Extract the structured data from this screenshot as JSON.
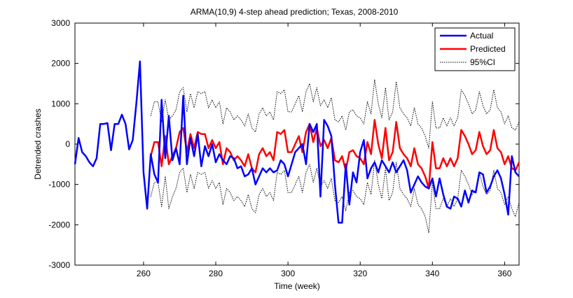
{
  "chart_data": {
    "type": "line",
    "title": "ARMA(10,9) 4-step ahead prediction; Texas, 2008-2010",
    "xlabel": "Time (week)",
    "ylabel": "Detrended crashes",
    "xlim": [
      241,
      364
    ],
    "ylim": [
      -3000,
      3000
    ],
    "xticks": [
      260,
      280,
      300,
      320,
      340,
      360
    ],
    "yticks": [
      -3000,
      -2000,
      -1000,
      0,
      1000,
      2000,
      3000
    ],
    "grid": false,
    "legend_position": "top-right",
    "series": [
      {
        "name": "Actual",
        "color": "#0000ff",
        "style": "solid",
        "x": [
          241,
          242,
          243,
          244,
          245,
          246,
          247,
          248,
          249,
          250,
          251,
          252,
          253,
          254,
          255,
          256,
          257,
          258,
          259,
          260,
          261,
          262,
          263,
          264,
          265,
          266,
          267,
          268,
          269,
          270,
          271,
          272,
          273,
          274,
          275,
          276,
          277,
          278,
          279,
          280,
          281,
          282,
          283,
          284,
          285,
          286,
          287,
          288,
          289,
          290,
          291,
          292,
          293,
          294,
          295,
          296,
          297,
          298,
          299,
          300,
          301,
          302,
          303,
          304,
          305,
          306,
          307,
          308,
          309,
          310,
          311,
          312,
          313,
          314,
          315,
          316,
          317,
          318,
          319,
          320,
          321,
          322,
          323,
          324,
          325,
          326,
          327,
          328,
          329,
          330,
          331,
          332,
          333,
          334,
          335,
          336,
          337,
          338,
          339,
          340,
          341,
          342,
          343,
          344,
          345,
          346,
          347,
          348,
          349,
          350,
          351,
          352,
          353,
          354,
          355,
          356,
          357,
          358,
          359,
          360,
          361,
          362,
          363,
          364
        ],
        "y": [
          -500,
          150,
          -200,
          -300,
          -450,
          -550,
          -350,
          500,
          500,
          520,
          -150,
          500,
          500,
          730,
          500,
          -130,
          100,
          1000,
          2050,
          -700,
          -1600,
          -250,
          -750,
          -950,
          1100,
          -350,
          700,
          -400,
          -100,
          -500,
          1200,
          -500,
          150,
          -300,
          250,
          -550,
          -50,
          -300,
          0,
          -450,
          -250,
          -400,
          -500,
          -300,
          -350,
          -600,
          -550,
          -800,
          -750,
          -600,
          -1000,
          -800,
          -600,
          -700,
          -600,
          -700,
          -650,
          -400,
          -500,
          -800,
          -500,
          -200,
          -100,
          0,
          -500,
          500,
          300,
          500,
          -1300,
          600,
          450,
          200,
          -1000,
          -1950,
          -1950,
          -500,
          -1500,
          -700,
          -950,
          -200,
          100,
          -850,
          -600,
          -450,
          -700,
          -400,
          -550,
          -700,
          -450,
          -700,
          -550,
          -400,
          -650,
          -1200,
          -1000,
          -800,
          -950,
          -1050,
          -1100,
          -850,
          -1300,
          -850,
          -1250,
          -1550,
          -1600,
          -1300,
          -1350,
          -1550,
          -1150,
          -1450,
          -1150,
          -1200,
          -700,
          -750,
          -1200,
          -1050,
          -800,
          -650,
          -850,
          -1250,
          -1750,
          -300,
          -700,
          -800
        ]
      },
      {
        "name": "Predicted",
        "color": "#ff0000",
        "style": "solid",
        "x": [
          262,
          263,
          264,
          265,
          266,
          267,
          268,
          269,
          270,
          271,
          272,
          273,
          274,
          275,
          276,
          277,
          278,
          279,
          280,
          281,
          282,
          283,
          284,
          285,
          286,
          287,
          288,
          289,
          290,
          291,
          292,
          293,
          294,
          295,
          296,
          297,
          298,
          299,
          300,
          301,
          302,
          303,
          304,
          305,
          306,
          307,
          308,
          309,
          310,
          311,
          312,
          313,
          314,
          315,
          316,
          317,
          318,
          319,
          320,
          321,
          322,
          323,
          324,
          325,
          326,
          327,
          328,
          329,
          330,
          331,
          332,
          333,
          334,
          335,
          336,
          337,
          338,
          339,
          340,
          341,
          342,
          343,
          344,
          345,
          346,
          347,
          348,
          349,
          350,
          351,
          352,
          353,
          354,
          355,
          356,
          357,
          358,
          359,
          360,
          361,
          362,
          363,
          364
        ],
        "y": [
          -300,
          50,
          50,
          -550,
          200,
          -500,
          -300,
          -100,
          300,
          400,
          -200,
          250,
          -100,
          300,
          250,
          250,
          -100,
          100,
          -100,
          50,
          -500,
          -100,
          -200,
          -400,
          -300,
          -400,
          -550,
          -250,
          -600,
          -700,
          -250,
          -100,
          -300,
          -200,
          -400,
          300,
          250,
          350,
          -200,
          -200,
          0,
          200,
          -200,
          300,
          500,
          50,
          400,
          -50,
          100,
          -100,
          150,
          -400,
          -450,
          -300,
          -650,
          -200,
          -150,
          -300,
          -350,
          -500,
          50,
          -250,
          600,
          0,
          -350,
          400,
          -400,
          -200,
          550,
          -100,
          -250,
          -350,
          -550,
          -100,
          -500,
          -600,
          -800,
          -1100,
          50,
          -600,
          -600,
          -350,
          -550,
          -350,
          -550,
          -350,
          350,
          200,
          0,
          -250,
          -150,
          300,
          -50,
          -250,
          -150,
          350,
          -100,
          -200,
          -500,
          -300,
          -600,
          -650,
          -450
        ]
      },
      {
        "name": "95%CI",
        "color": "#000000",
        "style": "dotted",
        "x": [
          262,
          263,
          264,
          265,
          266,
          267,
          268,
          269,
          270,
          271,
          272,
          273,
          274,
          275,
          276,
          277,
          278,
          279,
          280,
          281,
          282,
          283,
          284,
          285,
          286,
          287,
          288,
          289,
          290,
          291,
          292,
          293,
          294,
          295,
          296,
          297,
          298,
          299,
          300,
          301,
          302,
          303,
          304,
          305,
          306,
          307,
          308,
          309,
          310,
          311,
          312,
          313,
          314,
          315,
          316,
          317,
          318,
          319,
          320,
          321,
          322,
          323,
          324,
          325,
          326,
          327,
          328,
          329,
          330,
          331,
          332,
          333,
          334,
          335,
          336,
          337,
          338,
          339,
          340,
          341,
          342,
          343,
          344,
          345,
          346,
          347,
          348,
          349,
          350,
          351,
          352,
          353,
          354,
          355,
          356,
          357,
          358,
          359,
          360,
          361,
          362,
          363,
          364
        ],
        "y": [
          700,
          1050,
          1050,
          550,
          1100,
          600,
          700,
          850,
          1300,
          1400,
          800,
          1250,
          900,
          1300,
          1250,
          1300,
          900,
          1100,
          900,
          1050,
          500,
          900,
          800,
          600,
          700,
          600,
          450,
          750,
          400,
          300,
          750,
          900,
          700,
          800,
          600,
          1300,
          1250,
          1350,
          800,
          800,
          1000,
          1200,
          800,
          1300,
          1500,
          1050,
          1400,
          950,
          1100,
          900,
          1150,
          600,
          550,
          700,
          350,
          800,
          850,
          700,
          650,
          500,
          1050,
          750,
          1600,
          1000,
          650,
          1400,
          600,
          800,
          1550,
          900,
          750,
          650,
          450,
          900,
          500,
          400,
          200,
          -100,
          1050,
          400,
          400,
          650,
          450,
          650,
          450,
          650,
          1350,
          1200,
          1000,
          750,
          850,
          1300,
          950,
          750,
          850,
          1350,
          900,
          800,
          500,
          700,
          400,
          350,
          550
        ]
      },
      {
        "name": "",
        "color": "#000000",
        "style": "dotted",
        "x": [
          262,
          263,
          264,
          265,
          266,
          267,
          268,
          269,
          270,
          271,
          272,
          273,
          274,
          275,
          276,
          277,
          278,
          279,
          280,
          281,
          282,
          283,
          284,
          285,
          286,
          287,
          288,
          289,
          290,
          291,
          292,
          293,
          294,
          295,
          296,
          297,
          298,
          299,
          300,
          301,
          302,
          303,
          304,
          305,
          306,
          307,
          308,
          309,
          310,
          311,
          312,
          313,
          314,
          315,
          316,
          317,
          318,
          319,
          320,
          321,
          322,
          323,
          324,
          325,
          326,
          327,
          328,
          329,
          330,
          331,
          332,
          333,
          334,
          335,
          336,
          337,
          338,
          339,
          340,
          341,
          342,
          343,
          344,
          345,
          346,
          347,
          348,
          349,
          350,
          351,
          352,
          353,
          354,
          355,
          356,
          357,
          358,
          359,
          360,
          361,
          362,
          363,
          364
        ],
        "y": [
          -1300,
          -950,
          -950,
          -1550,
          -800,
          -1600,
          -1300,
          -1100,
          -700,
          -600,
          -1200,
          -750,
          -1100,
          -700,
          -750,
          -700,
          -1100,
          -900,
          -1100,
          -950,
          -1500,
          -1100,
          -1200,
          -1400,
          -1300,
          -1400,
          -1550,
          -1250,
          -1600,
          -1700,
          -1250,
          -1100,
          -1300,
          -1200,
          -1400,
          -700,
          -750,
          -650,
          -1200,
          -1200,
          -1000,
          -800,
          -1200,
          -700,
          -500,
          -950,
          -600,
          -1050,
          -900,
          -1100,
          -850,
          -1400,
          -1450,
          -1300,
          -1650,
          -1200,
          -1150,
          -1300,
          -1350,
          -1500,
          -950,
          -1250,
          -400,
          -1000,
          -1350,
          -600,
          -1400,
          -1200,
          -450,
          -1100,
          -1250,
          -1350,
          -1550,
          -1100,
          -1500,
          -1600,
          -1800,
          -2200,
          -950,
          -1600,
          -1600,
          -1350,
          -1550,
          -1350,
          -1550,
          -1350,
          -650,
          -800,
          -1000,
          -1250,
          -1150,
          -700,
          -1050,
          -1250,
          -1150,
          -650,
          -1100,
          -1200,
          -1500,
          -1300,
          -1600,
          -1800,
          -1450
        ]
      }
    ],
    "legend_items": [
      {
        "label": "Actual",
        "color": "#0000ff",
        "style": "solid"
      },
      {
        "label": "Predicted",
        "color": "#ff0000",
        "style": "solid"
      },
      {
        "label": "95%CI",
        "color": "#000000",
        "style": "dotted"
      }
    ]
  }
}
